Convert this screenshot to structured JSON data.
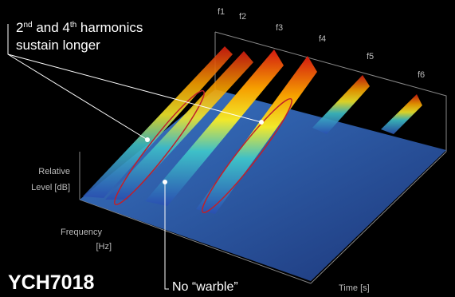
{
  "annotation": {
    "line1": [
      "2",
      "nd",
      " and 4",
      "th",
      " harmonics"
    ],
    "line2": "sustain longer"
  },
  "harmonics": [
    "f1",
    "f2",
    "f3",
    "f4",
    "f5",
    "f6"
  ],
  "axes": {
    "level": [
      "Relative",
      "Level [dB]"
    ],
    "frequency": [
      "Frequency",
      "[Hz]"
    ],
    "time": "Time [s]"
  },
  "model": "YCH7018",
  "callout": "No “warble”"
}
